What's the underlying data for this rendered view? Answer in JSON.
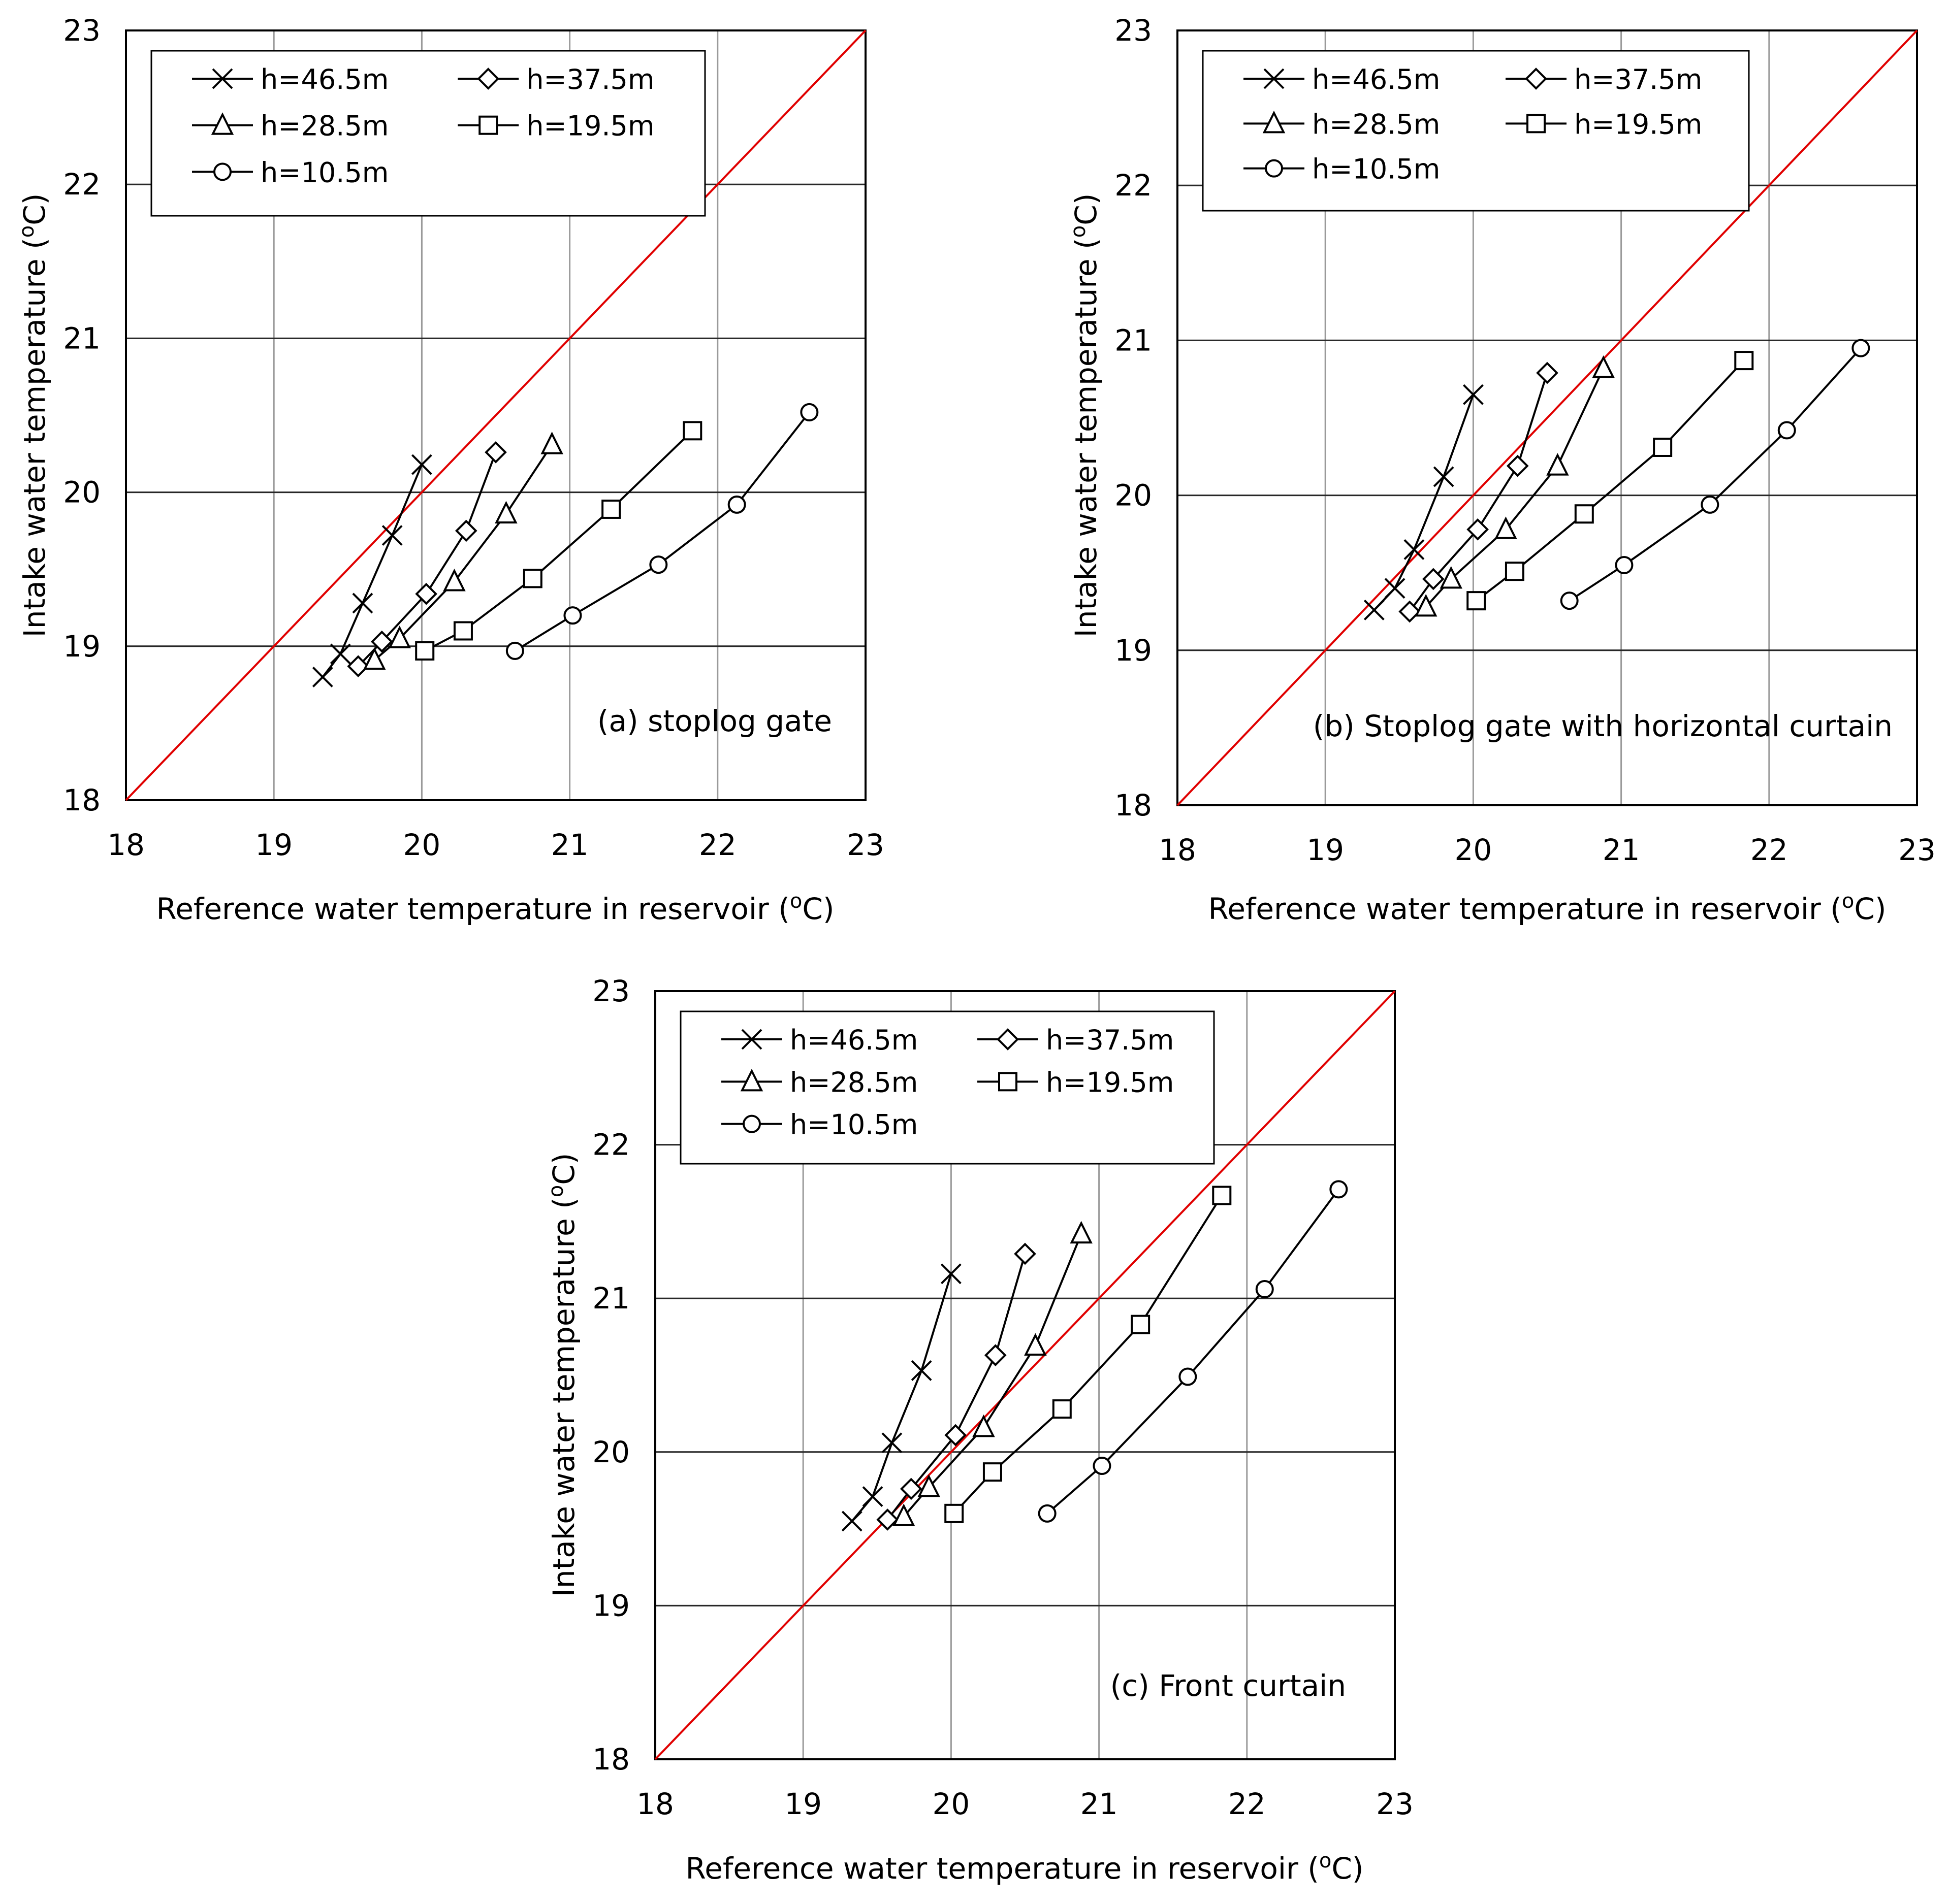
{
  "chart_data": [
    {
      "type": "line",
      "panel": "a",
      "annotation": "(a) stoplog gate",
      "xlabel": "Reference water temperature in reservoir (",
      "ylabel": "Intake water temperature (",
      "unit_sup": "o",
      "unit_tail": "C)",
      "xlim": [
        18,
        23
      ],
      "ylim": [
        18,
        23
      ],
      "xticks": [
        "18",
        "19",
        "20",
        "21",
        "22",
        "23"
      ],
      "yticks": [
        "18",
        "19",
        "20",
        "21",
        "22",
        "23"
      ],
      "grid": true,
      "reference_line": "y=x",
      "legend_position": "top-left",
      "series": [
        {
          "name": "h=46.5m",
          "marker": "x",
          "x": [
            19.33,
            19.45,
            19.6,
            19.8,
            20.0
          ],
          "y": [
            18.8,
            18.95,
            19.28,
            19.72,
            20.18
          ]
        },
        {
          "name": "h=37.5m",
          "marker": "diamond",
          "x": [
            19.57,
            19.73,
            20.03,
            20.3,
            20.5
          ],
          "y": [
            18.87,
            19.03,
            19.34,
            19.75,
            20.26
          ]
        },
        {
          "name": "h=28.5m",
          "marker": "triangle",
          "x": [
            19.68,
            19.85,
            20.22,
            20.57,
            20.88
          ],
          "y": [
            18.91,
            19.05,
            19.42,
            19.86,
            20.31
          ]
        },
        {
          "name": "h=19.5m",
          "marker": "square",
          "x": [
            20.02,
            20.28,
            20.75,
            21.28,
            21.83
          ],
          "y": [
            18.97,
            19.1,
            19.44,
            19.89,
            20.4
          ]
        },
        {
          "name": "h=10.5m",
          "marker": "circle",
          "x": [
            20.63,
            21.02,
            21.6,
            22.13,
            22.62
          ],
          "y": [
            18.97,
            19.2,
            19.53,
            19.92,
            20.52
          ]
        }
      ]
    },
    {
      "type": "line",
      "panel": "b",
      "annotation": "(b) Stoplog gate with horizontal curtain",
      "xlabel": "Reference water temperature in reservoir (",
      "ylabel": "Intake water temperature (",
      "unit_sup": "o",
      "unit_tail": "C)",
      "xlim": [
        18,
        23
      ],
      "ylim": [
        18,
        23
      ],
      "xticks": [
        "18",
        "19",
        "20",
        "21",
        "22",
        "23"
      ],
      "yticks": [
        "18",
        "19",
        "20",
        "21",
        "22",
        "23"
      ],
      "grid": true,
      "reference_line": "y=x",
      "legend_position": "top-left",
      "series": [
        {
          "name": "h=46.5m",
          "marker": "x",
          "x": [
            19.33,
            19.47,
            19.6,
            19.8,
            20.0
          ],
          "y": [
            19.26,
            19.4,
            19.65,
            20.12,
            20.65
          ]
        },
        {
          "name": "h=37.5m",
          "marker": "diamond",
          "x": [
            19.57,
            19.73,
            20.03,
            20.3,
            20.5
          ],
          "y": [
            19.25,
            19.46,
            19.78,
            20.19,
            20.79
          ]
        },
        {
          "name": "h=28.5m",
          "marker": "triangle",
          "x": [
            19.68,
            19.85,
            20.22,
            20.57,
            20.88
          ],
          "y": [
            19.28,
            19.46,
            19.78,
            20.19,
            20.82
          ]
        },
        {
          "name": "h=19.5m",
          "marker": "square",
          "x": [
            20.02,
            20.28,
            20.75,
            21.28,
            21.83
          ],
          "y": [
            19.32,
            19.51,
            19.88,
            20.31,
            20.87
          ]
        },
        {
          "name": "h=10.5m",
          "marker": "circle",
          "x": [
            20.65,
            21.02,
            21.6,
            22.12,
            22.62
          ],
          "y": [
            19.32,
            19.55,
            19.94,
            20.42,
            20.95
          ]
        }
      ]
    },
    {
      "type": "line",
      "panel": "c",
      "annotation": "(c) Front curtain",
      "xlabel": "Reference water temperature in reservoir (",
      "ylabel": "Intake water temperature (",
      "unit_sup": "o",
      "unit_tail": "C)",
      "xlim": [
        18,
        23
      ],
      "ylim": [
        18,
        23
      ],
      "xticks": [
        "18",
        "19",
        "20",
        "21",
        "22",
        "23"
      ],
      "yticks": [
        "18",
        "19",
        "20",
        "21",
        "22",
        "23"
      ],
      "grid": true,
      "reference_line": "y=x",
      "legend_position": "top-left",
      "series": [
        {
          "name": "h=46.5m",
          "marker": "x",
          "x": [
            19.33,
            19.47,
            19.6,
            19.8,
            20.0
          ],
          "y": [
            19.55,
            19.71,
            20.06,
            20.53,
            21.16
          ]
        },
        {
          "name": "h=37.5m",
          "marker": "diamond",
          "x": [
            19.57,
            19.73,
            20.03,
            20.3,
            20.5
          ],
          "y": [
            19.56,
            19.76,
            20.11,
            20.63,
            21.29
          ]
        },
        {
          "name": "h=28.5m",
          "marker": "triangle",
          "x": [
            19.68,
            19.85,
            20.22,
            20.57,
            20.88
          ],
          "y": [
            19.58,
            19.77,
            20.16,
            20.69,
            21.42
          ]
        },
        {
          "name": "h=19.5m",
          "marker": "square",
          "x": [
            20.02,
            20.28,
            20.75,
            21.28,
            21.83
          ],
          "y": [
            19.6,
            19.87,
            20.28,
            20.83,
            21.67
          ]
        },
        {
          "name": "h=10.5m",
          "marker": "circle",
          "x": [
            20.65,
            21.02,
            21.6,
            22.12,
            22.62
          ],
          "y": [
            19.6,
            19.91,
            20.49,
            21.06,
            21.71
          ]
        }
      ]
    }
  ],
  "colors": {
    "reference_line": "#e00000",
    "series": "#000000",
    "major_grid": "#000000",
    "minor_grid": "#9a9a9a",
    "background": "#ffffff"
  }
}
